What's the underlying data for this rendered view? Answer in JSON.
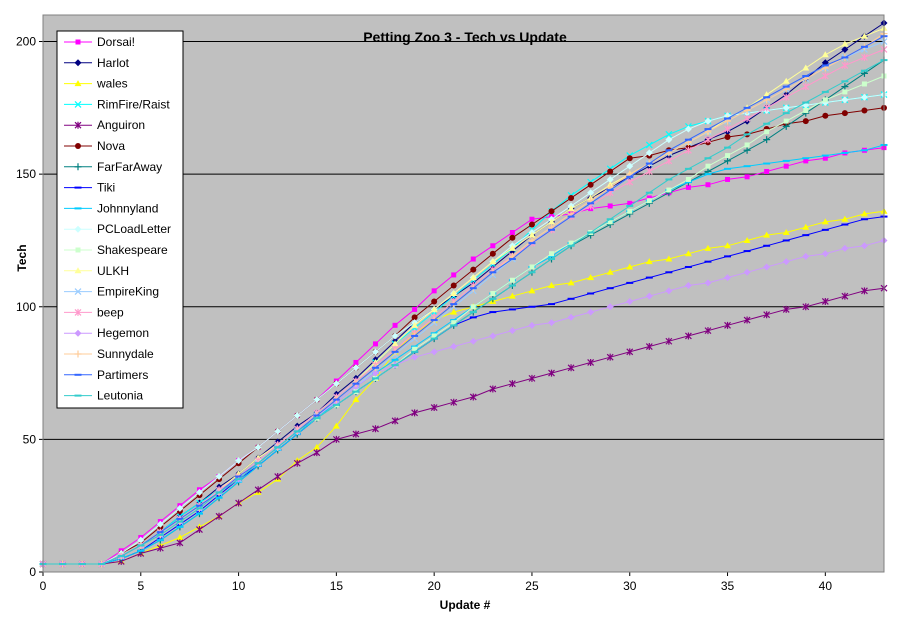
{
  "chart_data": {
    "type": "line",
    "title": "Petting Zoo 3 - Tech vs Update",
    "xlabel": "Update #",
    "ylabel": "Tech",
    "xlim": [
      0,
      43
    ],
    "ylim": [
      0,
      210
    ],
    "xticks": [
      0,
      5,
      10,
      15,
      20,
      25,
      30,
      35,
      40
    ],
    "yticks": [
      0,
      50,
      100,
      150,
      200
    ],
    "grid": "horizontal",
    "legend_position": "top-left",
    "plot_background": "#c0c0c0",
    "x": [
      0,
      1,
      2,
      3,
      4,
      5,
      6,
      7,
      8,
      9,
      10,
      11,
      12,
      13,
      14,
      15,
      16,
      17,
      18,
      19,
      20,
      21,
      22,
      23,
      24,
      25,
      26,
      27,
      28,
      29,
      30,
      31,
      32,
      33,
      34,
      35,
      36,
      37,
      38,
      39,
      40,
      41,
      42,
      43
    ],
    "series": [
      {
        "name": "Dorsai!",
        "color": "#ff00ff",
        "marker": "square",
        "values": [
          3,
          3,
          3,
          3,
          8,
          13,
          19,
          25,
          31,
          36,
          42,
          47,
          53,
          59,
          65,
          72,
          79,
          86,
          93,
          99,
          106,
          112,
          118,
          123,
          128,
          133,
          134,
          135,
          137,
          138,
          139,
          141,
          143,
          145,
          146,
          148,
          149,
          151,
          153,
          155,
          156,
          158,
          159,
          160
        ]
      },
      {
        "name": "Harlot",
        "color": "#000080",
        "marker": "diamond",
        "values": [
          3,
          3,
          3,
          3,
          6,
          10,
          15,
          21,
          26,
          32,
          37,
          43,
          49,
          55,
          60,
          67,
          73,
          80,
          87,
          94,
          99,
          104,
          109,
          115,
          121,
          127,
          132,
          137,
          141,
          145,
          149,
          153,
          157,
          160,
          163,
          166,
          170,
          175,
          180,
          186,
          192,
          197,
          202,
          207
        ]
      },
      {
        "name": "wales",
        "color": "#ffff00",
        "marker": "triangle",
        "values": [
          3,
          3,
          3,
          3,
          4,
          7,
          10,
          13,
          17,
          21,
          26,
          30,
          35,
          42,
          47,
          55,
          65,
          73,
          83,
          90,
          95,
          98,
          100,
          102,
          104,
          106,
          108,
          109,
          111,
          113,
          115,
          117,
          118,
          120,
          122,
          123,
          125,
          127,
          128,
          130,
          132,
          133,
          135,
          136
        ]
      },
      {
        "name": "RimFire/Raist",
        "color": "#00ffff",
        "marker": "x",
        "values": [
          3,
          3,
          3,
          3,
          6,
          10,
          15,
          21,
          26,
          31,
          36,
          42,
          48,
          54,
          60,
          66,
          72,
          79,
          86,
          92,
          98,
          104,
          110,
          116,
          122,
          129,
          136,
          142,
          147,
          152,
          157,
          161,
          165,
          168,
          170,
          172,
          173,
          174,
          175,
          176,
          177,
          178,
          179,
          180
        ]
      },
      {
        "name": "Anguiron",
        "color": "#800080",
        "marker": "star",
        "values": [
          3,
          3,
          3,
          3,
          4,
          7,
          9,
          11,
          16,
          21,
          26,
          31,
          36,
          41,
          45,
          50,
          52,
          54,
          57,
          60,
          62,
          64,
          66,
          69,
          71,
          73,
          75,
          77,
          79,
          81,
          83,
          85,
          87,
          89,
          91,
          93,
          95,
          97,
          99,
          100,
          102,
          104,
          106,
          107
        ]
      },
      {
        "name": "Nova",
        "color": "#800000",
        "marker": "circle",
        "values": [
          3,
          3,
          3,
          3,
          7,
          11,
          17,
          23,
          29,
          35,
          41,
          47,
          53,
          59,
          65,
          71,
          77,
          83,
          89,
          96,
          102,
          108,
          114,
          120,
          126,
          131,
          136,
          141,
          146,
          151,
          156,
          157,
          159,
          160,
          162,
          164,
          165,
          167,
          169,
          170,
          172,
          173,
          174,
          175
        ]
      },
      {
        "name": "FarFarAway",
        "color": "#008080",
        "marker": "plus",
        "values": [
          3,
          3,
          3,
          3,
          5,
          8,
          12,
          17,
          22,
          28,
          34,
          40,
          46,
          52,
          58,
          63,
          68,
          73,
          78,
          83,
          88,
          93,
          98,
          103,
          108,
          113,
          118,
          123,
          127,
          131,
          135,
          139,
          143,
          147,
          151,
          155,
          159,
          163,
          168,
          173,
          178,
          183,
          188,
          193
        ]
      },
      {
        "name": "Tiki",
        "color": "#0000ff",
        "marker": "dash",
        "values": [
          3,
          3,
          3,
          3,
          5,
          8,
          13,
          18,
          23,
          29,
          35,
          40,
          46,
          52,
          58,
          63,
          68,
          73,
          78,
          83,
          88,
          93,
          96,
          98,
          99,
          100,
          101,
          103,
          105,
          107,
          109,
          111,
          113,
          115,
          117,
          119,
          121,
          123,
          125,
          127,
          129,
          131,
          133,
          134
        ]
      },
      {
        "name": "Johnnyland",
        "color": "#00ccff",
        "marker": "dash",
        "values": [
          3,
          3,
          3,
          3,
          5,
          8,
          12,
          17,
          22,
          28,
          34,
          40,
          46,
          52,
          58,
          64,
          70,
          75,
          80,
          85,
          90,
          95,
          100,
          105,
          110,
          115,
          119,
          124,
          128,
          132,
          136,
          140,
          144,
          147,
          150,
          152,
          153,
          154,
          155,
          156,
          157,
          158,
          159,
          161
        ]
      },
      {
        "name": "PCLoadLetter",
        "color": "#ccffff",
        "marker": "diamond",
        "values": [
          3,
          3,
          3,
          3,
          7,
          12,
          18,
          24,
          30,
          36,
          42,
          47,
          53,
          59,
          65,
          71,
          77,
          83,
          89,
          94,
          99,
          105,
          111,
          117,
          123,
          128,
          133,
          138,
          143,
          148,
          153,
          158,
          163,
          167,
          170,
          172,
          173,
          174,
          175,
          176,
          177,
          178,
          179,
          180
        ]
      },
      {
        "name": "Shakespeare",
        "color": "#ccffcc",
        "marker": "square",
        "values": [
          3,
          3,
          3,
          3,
          6,
          10,
          14,
          19,
          24,
          30,
          36,
          41,
          47,
          53,
          58,
          63,
          68,
          73,
          78,
          84,
          89,
          94,
          100,
          105,
          110,
          115,
          120,
          124,
          128,
          132,
          136,
          140,
          144,
          148,
          153,
          157,
          161,
          166,
          170,
          174,
          178,
          181,
          184,
          187
        ]
      },
      {
        "name": "ULKH",
        "color": "#ffff99",
        "marker": "triangle",
        "values": [
          3,
          3,
          3,
          3,
          6,
          10,
          15,
          20,
          25,
          31,
          37,
          43,
          48,
          54,
          60,
          66,
          72,
          79,
          86,
          93,
          99,
          105,
          111,
          117,
          122,
          127,
          132,
          137,
          141,
          146,
          150,
          154,
          158,
          162,
          166,
          171,
          175,
          180,
          185,
          190,
          195,
          199,
          202,
          205
        ]
      },
      {
        "name": "EmpireKing",
        "color": "#99ccff",
        "marker": "x",
        "values": [
          3,
          3,
          3,
          3,
          6,
          10,
          14,
          19,
          24,
          30,
          35,
          41,
          47,
          53,
          59,
          64,
          70,
          76,
          82,
          88,
          94,
          100,
          106,
          112,
          118,
          124,
          129,
          134,
          139,
          144,
          149,
          154,
          158,
          162,
          166,
          170,
          174,
          178,
          182,
          186,
          190,
          194,
          197,
          200
        ]
      },
      {
        "name": "beep",
        "color": "#ff99cc",
        "marker": "star",
        "values": [
          3,
          3,
          3,
          3,
          6,
          10,
          15,
          20,
          25,
          31,
          36,
          42,
          48,
          54,
          60,
          66,
          72,
          78,
          84,
          90,
          96,
          102,
          108,
          114,
          119,
          124,
          129,
          134,
          138,
          143,
          147,
          151,
          155,
          159,
          163,
          167,
          171,
          175,
          179,
          183,
          187,
          191,
          194,
          197
        ]
      },
      {
        "name": "Hegemon",
        "color": "#cc99ff",
        "marker": "diamond",
        "values": [
          3,
          3,
          3,
          3,
          6,
          10,
          14,
          19,
          24,
          30,
          35,
          41,
          47,
          53,
          59,
          64,
          70,
          75,
          78,
          81,
          83,
          85,
          87,
          89,
          91,
          93,
          94,
          96,
          98,
          100,
          102,
          104,
          106,
          108,
          109,
          111,
          113,
          115,
          117,
          119,
          120,
          122,
          123,
          125
        ]
      },
      {
        "name": "Sunnydale",
        "color": "#ffcc99",
        "marker": "plus",
        "values": [
          3,
          3,
          3,
          3,
          6,
          10,
          14,
          19,
          24,
          30,
          36,
          41,
          47,
          53,
          59,
          65,
          71,
          77,
          83,
          89,
          95,
          101,
          107,
          113,
          119,
          125,
          130,
          135,
          140,
          145,
          150,
          154,
          158,
          162,
          166,
          170,
          174,
          178,
          182,
          186,
          190,
          194,
          198,
          203
        ]
      },
      {
        "name": "Partimers",
        "color": "#3366ff",
        "marker": "dash",
        "values": [
          3,
          3,
          3,
          3,
          6,
          10,
          15,
          20,
          25,
          30,
          36,
          41,
          47,
          53,
          59,
          65,
          71,
          77,
          83,
          89,
          95,
          101,
          107,
          113,
          118,
          124,
          129,
          134,
          139,
          144,
          149,
          154,
          159,
          163,
          167,
          171,
          175,
          179,
          183,
          187,
          191,
          194,
          198,
          202
        ]
      },
      {
        "name": "Leutonia",
        "color": "#33cccc",
        "marker": "dash",
        "values": [
          3,
          3,
          3,
          3,
          6,
          10,
          14,
          19,
          24,
          30,
          35,
          41,
          47,
          53,
          58,
          63,
          68,
          73,
          78,
          83,
          88,
          93,
          98,
          103,
          108,
          113,
          118,
          123,
          128,
          133,
          138,
          143,
          148,
          152,
          156,
          160,
          165,
          169,
          173,
          177,
          181,
          185,
          189,
          193
        ]
      }
    ]
  }
}
